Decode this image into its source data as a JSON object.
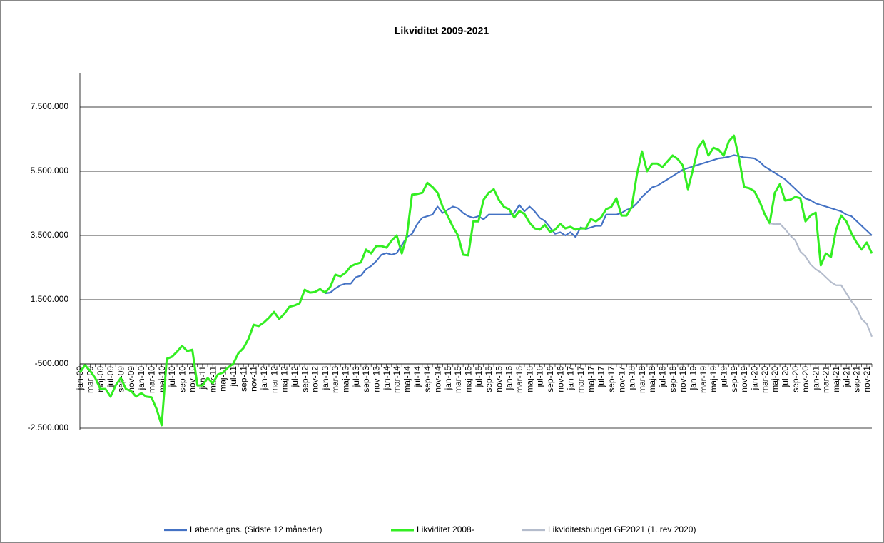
{
  "chart_data": {
    "type": "line",
    "title": "Likviditet 2009-2021",
    "categories": [
      "jan-09",
      null,
      "mar-09",
      null,
      "maj-09",
      null,
      "jul-09",
      null,
      "sep-09",
      null,
      "nov-09",
      null,
      "jan-10",
      null,
      "mar-10",
      null,
      "maj-10",
      null,
      "jul-10",
      null,
      "sep-10",
      null,
      "nov-10",
      null,
      "jan-11",
      null,
      "mar-11",
      null,
      "maj-11",
      null,
      "jul-11",
      null,
      "sep-11",
      null,
      "nov-11",
      null,
      "jan-12",
      null,
      "mar-12",
      null,
      "maj-12",
      null,
      "jul-12",
      null,
      "sep-12",
      null,
      "nov-12",
      null,
      "jan-13",
      null,
      "mar-13",
      null,
      "maj-13",
      null,
      "jul-13",
      null,
      "sep-13",
      null,
      "nov-13",
      null,
      "jan-14",
      null,
      "mar-14",
      null,
      "maj-14",
      null,
      "jul-14",
      null,
      "sep-14",
      null,
      "nov-14",
      null,
      "jan-15",
      null,
      "mar-15",
      null,
      "maj-15",
      null,
      "jul-15",
      null,
      "sep-15",
      null,
      "nov-15",
      null,
      "jan-16",
      null,
      "mar-16",
      null,
      "maj-16",
      null,
      "jul-16",
      null,
      "sep-16",
      null,
      "nov-16",
      null,
      "jan-17",
      null,
      "mar-17",
      null,
      "maj-17",
      null,
      "jul-17",
      null,
      "sep-17",
      null,
      "nov-17",
      null,
      "jan-18",
      null,
      "mar-18",
      null,
      "maj-18",
      null,
      "jul-18",
      null,
      "sep-18",
      null,
      "nov-18",
      null,
      "jan-19",
      null,
      "mar-19",
      null,
      "maj-19",
      null,
      "jul-19",
      null,
      "sep-19",
      null,
      "nov-19",
      null,
      "jan-20",
      null,
      "mar-20",
      null,
      "maj-20",
      null,
      "jul-20",
      null,
      "sep-20",
      null,
      "nov-20",
      null,
      "jan-21",
      null,
      "mar-21",
      null,
      "maj-21",
      null,
      "jul-21",
      null,
      "sep-21",
      null,
      "nov-21",
      null
    ],
    "series": [
      {
        "name": "Løbende gns. (Sidste 12 måneder)",
        "color": "#4472c4",
        "values": [
          null,
          null,
          null,
          null,
          null,
          null,
          null,
          null,
          null,
          null,
          null,
          null,
          null,
          null,
          null,
          null,
          null,
          null,
          null,
          null,
          null,
          null,
          null,
          null,
          null,
          null,
          null,
          null,
          null,
          null,
          null,
          null,
          null,
          null,
          null,
          null,
          null,
          null,
          null,
          null,
          null,
          null,
          null,
          null,
          null,
          null,
          null,
          null,
          1700000,
          1720000,
          1850000,
          1950000,
          2000000,
          2000000,
          2200000,
          2250000,
          2450000,
          2550000,
          2700000,
          2900000,
          2950000,
          2900000,
          2950000,
          3200000,
          3450000,
          3550000,
          3850000,
          4050000,
          4100000,
          4150000,
          4400000,
          4200000,
          4300000,
          4400000,
          4350000,
          4200000,
          4100000,
          4050000,
          4100000,
          4000000,
          4150000,
          4150000,
          4150000,
          4150000,
          4150000,
          4200000,
          4450000,
          4250000,
          4400000,
          4250000,
          4050000,
          3950000,
          3750000,
          3550000,
          3600000,
          3500000,
          3600000,
          3450000,
          3750000,
          3700000,
          3750000,
          3800000,
          3800000,
          4150000,
          4150000,
          4150000,
          4200000,
          4300000,
          4350000,
          4500000,
          4700000,
          4850000,
          5000000,
          5050000,
          5150000,
          5250000,
          5350000,
          5450000,
          5550000,
          5600000,
          5650000,
          5700000,
          5750000,
          5800000,
          5850000,
          5900000,
          5920000,
          5950000,
          6000000,
          5970000,
          5930000,
          5920000,
          5900000,
          5800000,
          5650000,
          5550000,
          5450000,
          5350000,
          5250000,
          5100000,
          4950000,
          4800000,
          4650000,
          4600000,
          4500000,
          4450000,
          4400000,
          4350000,
          4300000,
          4250000,
          4150000,
          4100000,
          3950000,
          3800000,
          3650000,
          3500000
        ]
      },
      {
        "name": "Likviditet 2008-",
        "color": "#33ee22",
        "values": [
          -770000,
          -540000,
          -720000,
          -940000,
          -1280000,
          -1280000,
          -1520000,
          -1170000,
          -940000,
          -1280000,
          -1340000,
          -1520000,
          -1410000,
          -1520000,
          -1540000,
          -1900000,
          -2410000,
          -340000,
          -280000,
          -120000,
          60000,
          -100000,
          -60000,
          -1170000,
          -1170000,
          -940000,
          -1100000,
          -830000,
          -770000,
          -610000,
          -500000,
          -170000,
          -10000,
          280000,
          720000,
          680000,
          790000,
          940000,
          1120000,
          900000,
          1060000,
          1280000,
          1320000,
          1390000,
          1810000,
          1720000,
          1740000,
          1830000,
          1720000,
          1900000,
          2280000,
          2230000,
          2340000,
          2540000,
          2610000,
          2660000,
          3060000,
          2940000,
          3170000,
          3170000,
          3120000,
          3340000,
          3500000,
          2940000,
          3500000,
          4770000,
          4790000,
          4830000,
          5140000,
          5010000,
          4830000,
          4390000,
          4100000,
          3770000,
          3500000,
          2900000,
          2880000,
          3940000,
          3940000,
          4610000,
          4830000,
          4940000,
          4610000,
          4390000,
          4320000,
          4060000,
          4260000,
          4170000,
          3900000,
          3720000,
          3680000,
          3830000,
          3610000,
          3680000,
          3860000,
          3720000,
          3770000,
          3680000,
          3720000,
          3720000,
          4010000,
          3940000,
          4060000,
          4320000,
          4390000,
          4660000,
          4120000,
          4120000,
          4390000,
          5390000,
          6120000,
          5500000,
          5740000,
          5740000,
          5630000,
          5810000,
          5990000,
          5880000,
          5680000,
          4940000,
          5570000,
          6230000,
          6460000,
          5990000,
          6230000,
          6170000,
          5990000,
          6430000,
          6610000,
          5900000,
          5010000,
          4970000,
          4880000,
          4570000,
          4170000,
          3880000,
          4830000,
          5100000,
          4590000,
          4610000,
          4700000,
          4660000,
          3940000,
          4120000,
          4210000,
          2570000,
          2940000,
          2830000,
          3680000,
          4120000,
          3940000,
          3570000,
          3280000,
          3060000,
          3280000,
          2940000
        ]
      },
      {
        "name": "Likviditetsbudget GF2021 (1. rev 2020)",
        "color": "#b4bccc",
        "values": [
          null,
          null,
          null,
          null,
          null,
          null,
          null,
          null,
          null,
          null,
          null,
          null,
          null,
          null,
          null,
          null,
          null,
          null,
          null,
          null,
          null,
          null,
          null,
          null,
          null,
          null,
          null,
          null,
          null,
          null,
          null,
          null,
          null,
          null,
          null,
          null,
          null,
          null,
          null,
          null,
          null,
          null,
          null,
          null,
          null,
          null,
          null,
          null,
          null,
          null,
          null,
          null,
          null,
          null,
          null,
          null,
          null,
          null,
          null,
          null,
          null,
          null,
          null,
          null,
          null,
          null,
          null,
          null,
          null,
          null,
          null,
          null,
          null,
          null,
          null,
          null,
          null,
          null,
          null,
          null,
          null,
          null,
          null,
          null,
          null,
          null,
          null,
          null,
          null,
          null,
          null,
          null,
          null,
          null,
          null,
          null,
          null,
          null,
          null,
          null,
          null,
          null,
          null,
          null,
          null,
          null,
          null,
          null,
          null,
          null,
          null,
          null,
          null,
          null,
          null,
          null,
          null,
          null,
          null,
          null,
          null,
          null,
          null,
          null,
          null,
          null,
          null,
          null,
          null,
          null,
          null,
          null,
          null,
          null,
          null,
          3880000,
          3850000,
          3860000,
          3700000,
          3500000,
          3350000,
          3000000,
          2850000,
          2600000,
          2450000,
          2350000,
          2200000,
          2050000,
          1950000,
          1950000,
          1700000,
          1450000,
          1250000,
          900000,
          750000,
          350000
        ]
      }
    ],
    "ylim": [
      -2500000,
      8500000
    ],
    "yticks": [
      {
        "value": -2500000,
        "label": "-2.500.000"
      },
      {
        "value": -500000,
        "label": "-500.000"
      },
      {
        "value": 1500000,
        "label": "1.500.000"
      },
      {
        "value": 3500000,
        "label": "3.500.000"
      },
      {
        "value": 5500000,
        "label": "5.500.000"
      },
      {
        "value": 7500000,
        "label": "7.500.000"
      }
    ],
    "x_axis_crosses": -500000,
    "grid": true,
    "legend": "bottom"
  }
}
